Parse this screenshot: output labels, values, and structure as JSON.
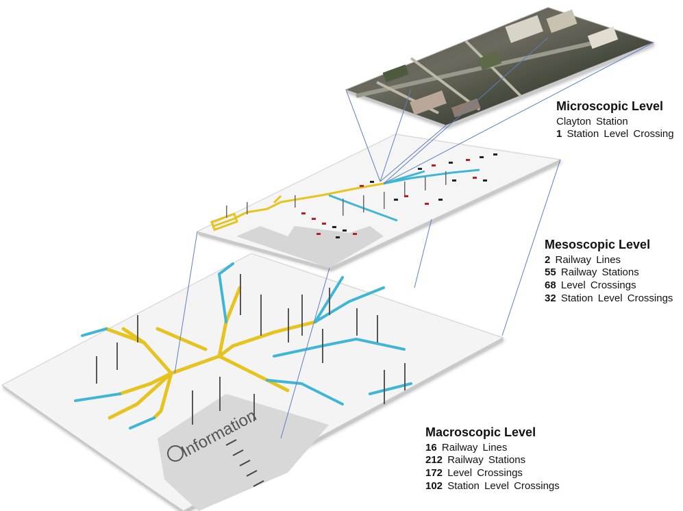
{
  "levels": {
    "micro": {
      "title": "Microscopic Level",
      "lines": [
        {
          "num": "",
          "text": "Clayton Station"
        },
        {
          "num": "1",
          "text": " Station Level Crossing"
        }
      ]
    },
    "meso": {
      "title": "Mesoscopic Level",
      "lines": [
        {
          "num": "2",
          "text": " Railway Lines"
        },
        {
          "num": "55",
          "text": " Railway Stations"
        },
        {
          "num": "68",
          "text": " Level Crossings"
        },
        {
          "num": "32",
          "text": " Station Level Crossings"
        }
      ]
    },
    "macro": {
      "title": "Macroscopic Level",
      "lines": [
        {
          "num": "16",
          "text": " Railway Lines"
        },
        {
          "num": "212",
          "text": " Railway Stations"
        },
        {
          "num": "172",
          "text": " Level Crossings"
        },
        {
          "num": "102",
          "text": " Station Level Crossings"
        }
      ]
    }
  },
  "map_text": {
    "information": "Information"
  },
  "colors": {
    "yellow_line": "#e6c31e",
    "cyan_line": "#3fb6d6",
    "connector": "#5a7fc0",
    "station_dot": "#b52020"
  }
}
